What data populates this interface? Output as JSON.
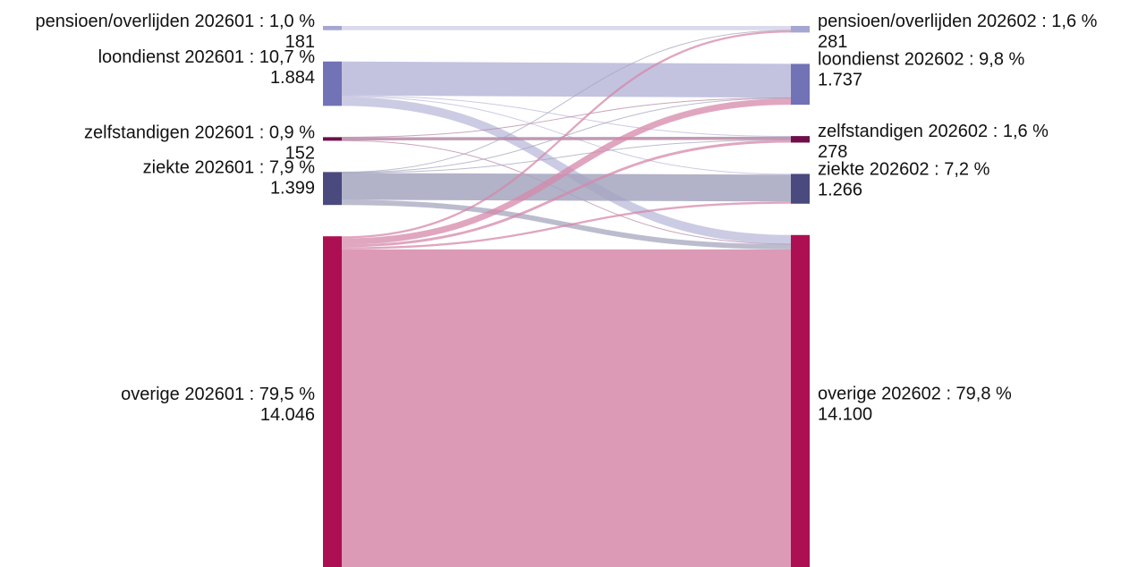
{
  "chart_data": {
    "type": "sankey",
    "left_nodes": [
      {
        "id": "pensioen",
        "label": "pensioen/overlijden 202601 : 1,0 %",
        "count_label": "181",
        "value": 181,
        "color": "#a6a6d2"
      },
      {
        "id": "loondienst",
        "label": "loondienst 202601 : 10,7 %",
        "count_label": "1.884",
        "value": 1884,
        "color": "#7272b6"
      },
      {
        "id": "zelfstandigen",
        "label": "zelfstandigen 202601 : 0,9 %",
        "count_label": "152",
        "value": 152,
        "color": "#6e0f4a"
      },
      {
        "id": "ziekte",
        "label": "ziekte 202601 : 7,9 %",
        "count_label": "1.399",
        "value": 1399,
        "color": "#4a4a7e"
      },
      {
        "id": "overige",
        "label": "overige 202601 : 79,5 %",
        "count_label": "14.046",
        "value": 14046,
        "color": "#ad1052"
      }
    ],
    "right_nodes": [
      {
        "id": "pensioen",
        "label": "pensioen/overlijden 202602 : 1,6 %",
        "count_label": "281",
        "value": 281,
        "color": "#a6a6d2"
      },
      {
        "id": "loondienst",
        "label": "loondienst 202602 : 9,8 %",
        "count_label": "1.737",
        "value": 1737,
        "color": "#7272b6"
      },
      {
        "id": "zelfstandigen",
        "label": "zelfstandigen 202602 : 1,6 %",
        "count_label": "278",
        "value": 278,
        "color": "#6e0f4a"
      },
      {
        "id": "ziekte",
        "label": "ziekte 202602 : 7,2 %",
        "count_label": "1.266",
        "value": 1266,
        "color": "#4a4a7e"
      },
      {
        "id": "overige",
        "label": "overige 202602 : 79,8 %",
        "count_label": "14.100",
        "value": 14100,
        "color": "#ad1052"
      }
    ],
    "flows": [
      {
        "source": "pensioen",
        "target": "pensioen",
        "value": 181
      },
      {
        "source": "loondienst",
        "target": "loondienst",
        "value": 1440
      },
      {
        "source": "loondienst",
        "target": "zelfstandigen",
        "value": 28
      },
      {
        "source": "loondienst",
        "target": "ziekte",
        "value": 36
      },
      {
        "source": "loondienst",
        "target": "overige",
        "value": 380
      },
      {
        "source": "zelfstandigen",
        "target": "loondienst",
        "value": 8
      },
      {
        "source": "zelfstandigen",
        "target": "zelfstandigen",
        "value": 132
      },
      {
        "source": "zelfstandigen",
        "target": "overige",
        "value": 12
      },
      {
        "source": "ziekte",
        "target": "pensioen",
        "value": 12
      },
      {
        "source": "ziekte",
        "target": "loondienst",
        "value": 20
      },
      {
        "source": "ziekte",
        "target": "zelfstandigen",
        "value": 8
      },
      {
        "source": "ziekte",
        "target": "ziekte",
        "value": 1140
      },
      {
        "source": "ziekte",
        "target": "overige",
        "value": 219
      },
      {
        "source": "overige",
        "target": "pensioen",
        "value": 88
      },
      {
        "source": "overige",
        "target": "loondienst",
        "value": 269
      },
      {
        "source": "overige",
        "target": "zelfstandigen",
        "value": 110
      },
      {
        "source": "overige",
        "target": "ziekte",
        "value": 90
      },
      {
        "source": "overige",
        "target": "overige",
        "value": 13489
      }
    ],
    "legend": "none"
  }
}
